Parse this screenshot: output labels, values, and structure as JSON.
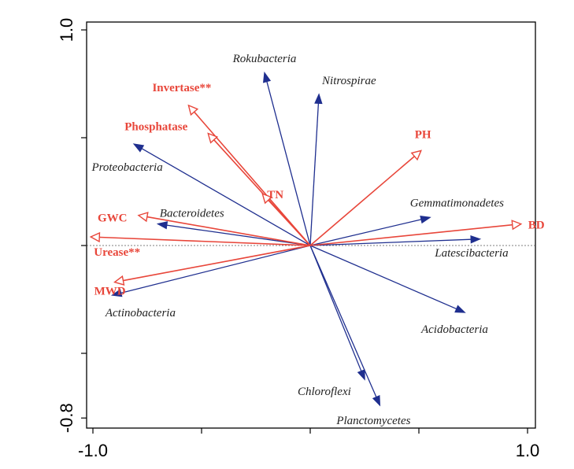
{
  "chart_data": {
    "type": "scatter",
    "subtype": "rda-biplot",
    "title": "",
    "xlabel": "",
    "ylabel": "",
    "xlim": [
      -1.0,
      1.0
    ],
    "ylim": [
      -0.8,
      1.0
    ],
    "x_tick_labels": [
      {
        "value": -1.0,
        "label": "-1.0"
      },
      {
        "value": 1.0,
        "label": "1.0"
      }
    ],
    "y_tick_labels": [
      {
        "value": 1.0,
        "label": "1.0"
      },
      {
        "value": -0.8,
        "label": "-0.8"
      }
    ],
    "x_minor_ticks": [
      -0.5,
      0.0,
      0.5
    ],
    "y_minor_ticks": [
      -0.5,
      0.0,
      0.5
    ],
    "reference_line_y": 0,
    "colors": {
      "bacteria": "#1f2f8f",
      "environment": "#e8463a",
      "axis": "#000000"
    },
    "arrow_styles": {
      "bacteria": "filled-head",
      "environment": "open-head"
    },
    "series": [
      {
        "group": "bacteria",
        "vectors": [
          {
            "label": "Rokubacteria",
            "x": -0.21,
            "y": 0.8
          },
          {
            "label": "Nitrospirae",
            "x": 0.04,
            "y": 0.7
          },
          {
            "label": "Proteobacteria",
            "x": -0.81,
            "y": 0.47
          },
          {
            "label": "Bacteroidetes",
            "x": -0.7,
            "y": 0.1
          },
          {
            "label": "Actinobacteria",
            "x": -0.91,
            "y": -0.23
          },
          {
            "label": "Gemmatimonadetes",
            "x": 0.55,
            "y": 0.13
          },
          {
            "label": "Latescibacteria",
            "x": 0.78,
            "y": 0.03
          },
          {
            "label": "Acidobacteria",
            "x": 0.71,
            "y": -0.31
          },
          {
            "label": "Chloroflexi",
            "x": 0.25,
            "y": -0.62
          },
          {
            "label": "Planctomycetes",
            "x": 0.32,
            "y": -0.74
          }
        ]
      },
      {
        "group": "environment",
        "vectors": [
          {
            "label": "Invertase**",
            "x": -0.56,
            "y": 0.65
          },
          {
            "label": "Phosphatase",
            "x": -0.47,
            "y": 0.52
          },
          {
            "label": "TN",
            "x": -0.22,
            "y": 0.24
          },
          {
            "label": "PH",
            "x": 0.51,
            "y": 0.44
          },
          {
            "label": "GWC",
            "x": -0.79,
            "y": 0.14
          },
          {
            "label": "Urease**",
            "x": -1.01,
            "y": 0.04
          },
          {
            "label": "MWD",
            "x": -0.9,
            "y": -0.17
          },
          {
            "label": "BD",
            "x": 0.97,
            "y": 0.1
          }
        ]
      }
    ]
  }
}
